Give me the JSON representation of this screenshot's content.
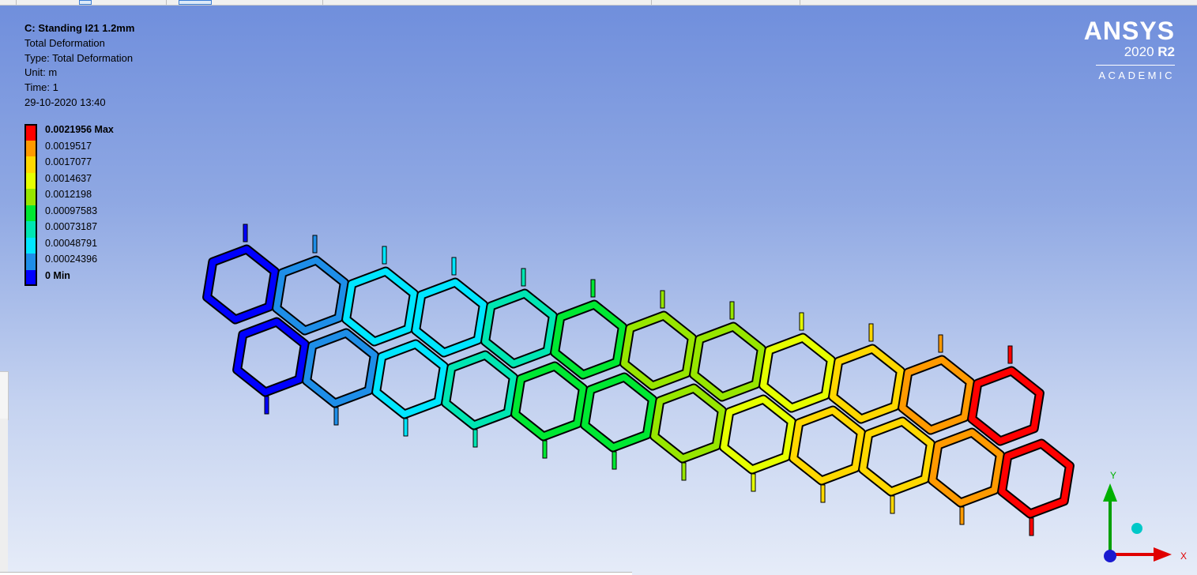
{
  "info": {
    "title": "C: Standing I21 1.2mm",
    "result": "Total Deformation",
    "type": "Type: Total Deformation",
    "unit": "Unit: m",
    "time": "Time: 1",
    "timestamp": "29-10-2020 13:40"
  },
  "legend": [
    {
      "label": "0.0021956 Max",
      "color": "#ff0000"
    },
    {
      "label": "0.0019517",
      "color": "#ff9a00"
    },
    {
      "label": "0.0017077",
      "color": "#ffd800"
    },
    {
      "label": "0.0014637",
      "color": "#e6ff00"
    },
    {
      "label": "0.0012198",
      "color": "#97e600"
    },
    {
      "label": "0.00097583",
      "color": "#00e832"
    },
    {
      "label": "0.00073187",
      "color": "#00e6b2"
    },
    {
      "label": "0.00048791",
      "color": "#00e6ff"
    },
    {
      "label": "0.00024396",
      "color": "#1e8ee8"
    },
    {
      "label": "0 Min",
      "color": "#0000ff"
    }
  ],
  "brand": {
    "logo": "ANSYS",
    "version_year": "2020",
    "version_release": "R2",
    "tier": "ACADEMIC"
  },
  "triad": {
    "y_label": "Y",
    "x_label": "X"
  },
  "colors": {
    "background_top": "#6f8edc",
    "background_bottom": "#e6ecf8"
  }
}
